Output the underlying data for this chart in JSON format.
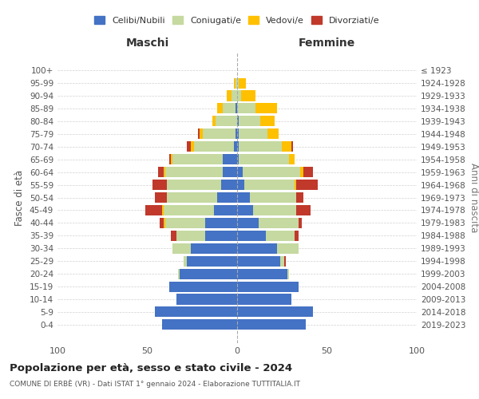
{
  "age_groups": [
    "0-4",
    "5-9",
    "10-14",
    "15-19",
    "20-24",
    "25-29",
    "30-34",
    "35-39",
    "40-44",
    "45-49",
    "50-54",
    "55-59",
    "60-64",
    "65-69",
    "70-74",
    "75-79",
    "80-84",
    "85-89",
    "90-94",
    "95-99",
    "100+"
  ],
  "birth_years": [
    "2019-2023",
    "2014-2018",
    "2009-2013",
    "2004-2008",
    "1999-2003",
    "1994-1998",
    "1989-1993",
    "1984-1988",
    "1979-1983",
    "1974-1978",
    "1969-1973",
    "1964-1968",
    "1959-1963",
    "1954-1958",
    "1949-1953",
    "1944-1948",
    "1939-1943",
    "1934-1938",
    "1929-1933",
    "1924-1928",
    "≤ 1923"
  ],
  "male_celibe": [
    42,
    46,
    34,
    38,
    32,
    28,
    26,
    18,
    18,
    13,
    11,
    9,
    8,
    8,
    2,
    1,
    0,
    1,
    0,
    0,
    0
  ],
  "male_coniugato": [
    0,
    0,
    0,
    0,
    1,
    2,
    10,
    16,
    22,
    28,
    28,
    30,
    32,
    28,
    22,
    18,
    12,
    7,
    3,
    1,
    0
  ],
  "male_vedovo": [
    0,
    0,
    0,
    0,
    0,
    0,
    0,
    0,
    1,
    1,
    0,
    0,
    1,
    1,
    2,
    2,
    2,
    3,
    3,
    1,
    0
  ],
  "male_divorziato": [
    0,
    0,
    0,
    0,
    0,
    0,
    0,
    3,
    2,
    9,
    7,
    8,
    3,
    1,
    2,
    1,
    0,
    0,
    0,
    0,
    0
  ],
  "female_nubile": [
    38,
    42,
    30,
    34,
    28,
    24,
    22,
    16,
    12,
    9,
    7,
    4,
    3,
    1,
    1,
    1,
    1,
    0,
    0,
    0,
    0
  ],
  "female_coniugata": [
    0,
    0,
    0,
    0,
    1,
    2,
    12,
    16,
    22,
    24,
    26,
    28,
    32,
    28,
    24,
    16,
    12,
    10,
    2,
    1,
    0
  ],
  "female_vedova": [
    0,
    0,
    0,
    0,
    0,
    0,
    0,
    0,
    0,
    0,
    0,
    1,
    2,
    3,
    5,
    6,
    8,
    12,
    8,
    4,
    0
  ],
  "female_divorziata": [
    0,
    0,
    0,
    0,
    0,
    1,
    0,
    2,
    2,
    8,
    4,
    12,
    5,
    0,
    1,
    0,
    0,
    0,
    0,
    0,
    0
  ],
  "colors": {
    "celibe": "#4472c4",
    "coniugato": "#c5d9a0",
    "vedovo": "#ffc000",
    "divorziato": "#c0392b"
  },
  "title": "Popolazione per età, sesso e stato civile - 2024",
  "subtitle": "COMUNE DI ERBÈ (VR) - Dati ISTAT 1° gennaio 2024 - Elaborazione TUTTITALIA.IT",
  "xlabel_left": "Maschi",
  "xlabel_right": "Femmine",
  "ylabel_left": "Fasce di età",
  "ylabel_right": "Anni di nascita",
  "xlim": 100,
  "background_color": "#ffffff",
  "grid_color": "#cccccc"
}
